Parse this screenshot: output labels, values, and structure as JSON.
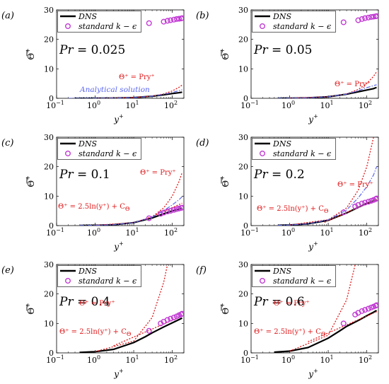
{
  "figure": {
    "colors": {
      "dns": "#000000",
      "rans": "#c23bd4",
      "linear_law": "#e0191b",
      "log_law": "#e0191b",
      "analytical": "#5a66ee"
    },
    "shared": {
      "xlabel": "y",
      "xlabel_sup": "+",
      "ylabel": "Θ",
      "ylabel_sup": "+",
      "xlim": [
        0.1,
        200
      ],
      "ylim": [
        0,
        30
      ],
      "xscale": "log",
      "yticks": [
        0,
        10,
        20,
        30
      ],
      "xtick_bases": [
        "10",
        "10",
        "10",
        "10"
      ],
      "xtick_exponents": [
        "−1",
        "0",
        "1",
        "2"
      ],
      "legend": {
        "dns": "DNS",
        "rans": "standard k − ϵ",
        "placement": "top-left"
      }
    }
  },
  "chart_data": [
    {
      "type": "line",
      "panel_label": "(a)",
      "pr_text": "Pr = 0.025",
      "pr_var": "Pr",
      "pr_value": " = 0.025",
      "annotations": {
        "linear": "Θ⁺ = Pry⁺",
        "log": "",
        "analytical": "Analytical solution"
      },
      "series": [
        {
          "name": "DNS",
          "kind": "line",
          "x": [
            0.3,
            1,
            3,
            10,
            30,
            60,
            100,
            150,
            180
          ],
          "y": [
            0.01,
            0.03,
            0.08,
            0.25,
            0.7,
            1.2,
            1.6,
            1.9,
            2.1
          ]
        },
        {
          "name": "standard k − ϵ",
          "kind": "markers",
          "x": [
            25,
            60,
            75,
            90,
            110,
            130,
            150,
            170,
            180
          ],
          "y": [
            25.5,
            26.0,
            26.3,
            26.5,
            26.7,
            26.9,
            27.0,
            27.1,
            27.2
          ]
        },
        {
          "kind": "linear-law",
          "x": [
            1,
            10,
            30,
            60,
            100,
            150,
            180
          ],
          "y": [
            0.025,
            0.25,
            0.75,
            1.5,
            2.5,
            3.75,
            4.5
          ]
        },
        {
          "kind": "analytical",
          "x": [
            0.2,
            1,
            3,
            10,
            30,
            60,
            100,
            150,
            180
          ],
          "y": [
            0.005,
            0.025,
            0.075,
            0.25,
            0.72,
            1.35,
            2.0,
            2.6,
            2.9
          ]
        }
      ]
    },
    {
      "type": "line",
      "panel_label": "(b)",
      "pr_text": "Pr = 0.05",
      "pr_var": "Pr",
      "pr_value": " = 0.05",
      "annotations": {
        "linear": "Θ⁺ = Pry⁺",
        "log": "",
        "analytical": ""
      },
      "series": [
        {
          "name": "DNS",
          "kind": "line",
          "x": [
            0.5,
            1,
            3,
            10,
            30,
            60,
            100,
            150,
            180
          ],
          "y": [
            0.03,
            0.05,
            0.15,
            0.5,
            1.4,
            2.2,
            2.8,
            3.3,
            3.7
          ]
        },
        {
          "name": "standard k − ϵ",
          "kind": "markers",
          "x": [
            25,
            60,
            75,
            90,
            110,
            130,
            150,
            170,
            180
          ],
          "y": [
            25.8,
            26.5,
            26.9,
            27.2,
            27.4,
            27.6,
            27.7,
            27.8,
            27.9
          ]
        },
        {
          "kind": "linear-law",
          "x": [
            1,
            10,
            30,
            60,
            100,
            150,
            180
          ],
          "y": [
            0.05,
            0.5,
            1.5,
            3,
            5,
            7.5,
            9
          ]
        },
        {
          "kind": "analytical",
          "x": [
            0.5,
            1,
            3,
            10,
            30,
            60,
            100,
            150,
            180
          ],
          "y": [
            0.025,
            0.05,
            0.15,
            0.5,
            1.45,
            2.6,
            3.6,
            4.3,
            4.6
          ]
        }
      ]
    },
    {
      "type": "line",
      "panel_label": "(c)",
      "pr_text": "Pr = 0.1",
      "pr_var": "Pr",
      "pr_value": " = 0.1",
      "annotations": {
        "linear": "Θ⁺ = Pry⁺",
        "log": "Θ⁺ = 2.5ln(y⁺) + C",
        "log_sub": "Θ",
        "analytical": ""
      },
      "series": [
        {
          "name": "DNS",
          "kind": "line",
          "x": [
            0.4,
            1,
            3,
            10,
            30,
            60,
            100,
            150,
            180
          ],
          "y": [
            0.04,
            0.1,
            0.3,
            1.0,
            2.6,
            4.0,
            5.0,
            5.6,
            5.9
          ]
        },
        {
          "name": "standard k − ϵ",
          "kind": "markers",
          "x": [
            25,
            50,
            60,
            75,
            90,
            110,
            130,
            150,
            170,
            180
          ],
          "y": [
            2.5,
            4.0,
            4.4,
            4.8,
            5.0,
            5.3,
            5.6,
            5.8,
            6.0,
            6.1
          ]
        },
        {
          "kind": "linear-law",
          "x": [
            1,
            10,
            30,
            60,
            100,
            150,
            180
          ],
          "y": [
            0.1,
            1,
            3,
            6,
            10,
            15,
            18
          ]
        },
        {
          "kind": "log-law",
          "x": [
            20,
            50,
            100,
            180
          ],
          "y": [
            2.1,
            4.4,
            6.1,
            7.6
          ]
        },
        {
          "kind": "analytical",
          "x": [
            0.4,
            1,
            3,
            10,
            30,
            60,
            100,
            150,
            180
          ],
          "y": [
            0.04,
            0.1,
            0.3,
            1.0,
            2.85,
            5.1,
            7.0,
            8.8,
            9.8
          ]
        }
      ]
    },
    {
      "type": "line",
      "panel_label": "(d)",
      "pr_text": "Pr = 0.2",
      "pr_var": "Pr",
      "pr_value": " = 0.2",
      "annotations": {
        "linear": "Θ⁺ = Pry⁺",
        "log": "Θ⁺ = 2.5ln(y⁺) + C",
        "log_sub": "Θ",
        "analytical": ""
      },
      "series": [
        {
          "name": "DNS",
          "kind": "line",
          "x": [
            0.5,
            1,
            3,
            10,
            30,
            60,
            100,
            150,
            180
          ],
          "y": [
            0.1,
            0.2,
            0.6,
            1.8,
            4.3,
            6.2,
            7.5,
            8.4,
            8.8
          ]
        },
        {
          "name": "standard k − ϵ",
          "kind": "markers",
          "x": [
            25,
            50,
            60,
            75,
            90,
            110,
            130,
            150,
            170,
            180
          ],
          "y": [
            4.5,
            6.5,
            7.0,
            7.5,
            7.8,
            8.1,
            8.4,
            8.7,
            9.0,
            9.2
          ]
        },
        {
          "kind": "linear-law",
          "x": [
            1,
            10,
            30,
            60,
            100,
            150
          ],
          "y": [
            0.2,
            2,
            6,
            12,
            20,
            30
          ]
        },
        {
          "kind": "log-law",
          "x": [
            8,
            20,
            50,
            100,
            180
          ],
          "y": [
            1.1,
            3.4,
            5.7,
            7.4,
            8.9
          ]
        },
        {
          "kind": "analytical",
          "x": [
            0.5,
            1,
            3,
            10,
            30,
            60,
            100,
            150,
            180
          ],
          "y": [
            0.1,
            0.2,
            0.6,
            1.95,
            5.3,
            9.4,
            13.2,
            17.2,
            20.0
          ]
        }
      ]
    },
    {
      "type": "line",
      "panel_label": "(e)",
      "pr_text": "Pr = 0.4",
      "pr_var": "Pr",
      "pr_value": " = 0.4",
      "annotations": {
        "linear": "Θ⁺ = Pry⁺",
        "log": "Θ⁺ = 2.5ln(y⁺) + C",
        "log_sub": "Θ",
        "analytical": ""
      },
      "series": [
        {
          "name": "DNS",
          "kind": "line",
          "x": [
            0.4,
            1,
            3,
            10,
            20,
            30,
            60,
            100,
            150,
            180
          ],
          "y": [
            0.16,
            0.4,
            1.2,
            3.5,
            5.5,
            6.8,
            8.8,
            10.2,
            11.3,
            11.8
          ]
        },
        {
          "name": "standard k − ϵ",
          "kind": "markers",
          "x": [
            25,
            50,
            60,
            75,
            90,
            110,
            130,
            150,
            170,
            180
          ],
          "y": [
            7.5,
            10.0,
            10.6,
            11.2,
            11.6,
            12.0,
            12.4,
            12.8,
            13.1,
            13.3
          ]
        },
        {
          "kind": "linear-law",
          "x": [
            1,
            10,
            30,
            60,
            75
          ],
          "y": [
            0.4,
            4,
            12,
            24,
            30
          ]
        },
        {
          "kind": "log-law",
          "x": [
            3,
            10,
            30,
            100,
            180
          ],
          "y": [
            2.4,
            5.4,
            8.1,
            11.1,
            12.6
          ]
        }
      ]
    },
    {
      "type": "line",
      "panel_label": "(f)",
      "pr_text": "Pr = 0.6",
      "pr_var": "Pr",
      "pr_value": " = 0.6",
      "annotations": {
        "linear": "Θ⁺ = Pry⁺",
        "log": "Θ⁺ = 2.5ln(y⁺) + C",
        "log_sub": "Θ",
        "analytical": ""
      },
      "series": [
        {
          "name": "DNS",
          "kind": "line",
          "x": [
            0.4,
            1,
            3,
            10,
            20,
            30,
            60,
            100,
            150,
            180
          ],
          "y": [
            0.25,
            0.6,
            1.8,
            5.0,
            7.5,
            9.0,
            11.0,
            12.6,
            13.8,
            14.4
          ]
        },
        {
          "name": "standard k − ϵ",
          "kind": "markers",
          "x": [
            25,
            50,
            60,
            75,
            90,
            110,
            130,
            150,
            170,
            180
          ],
          "y": [
            10.0,
            13.0,
            13.6,
            14.2,
            14.6,
            15.0,
            15.4,
            15.7,
            16.0,
            16.2
          ]
        },
        {
          "kind": "linear-law",
          "x": [
            1,
            10,
            30,
            50
          ],
          "y": [
            0.6,
            6,
            18,
            30
          ]
        },
        {
          "kind": "log-law",
          "x": [
            3,
            10,
            30,
            100,
            180
          ],
          "y": [
            3.8,
            6.8,
            9.5,
            12.5,
            14.0
          ]
        }
      ]
    }
  ]
}
